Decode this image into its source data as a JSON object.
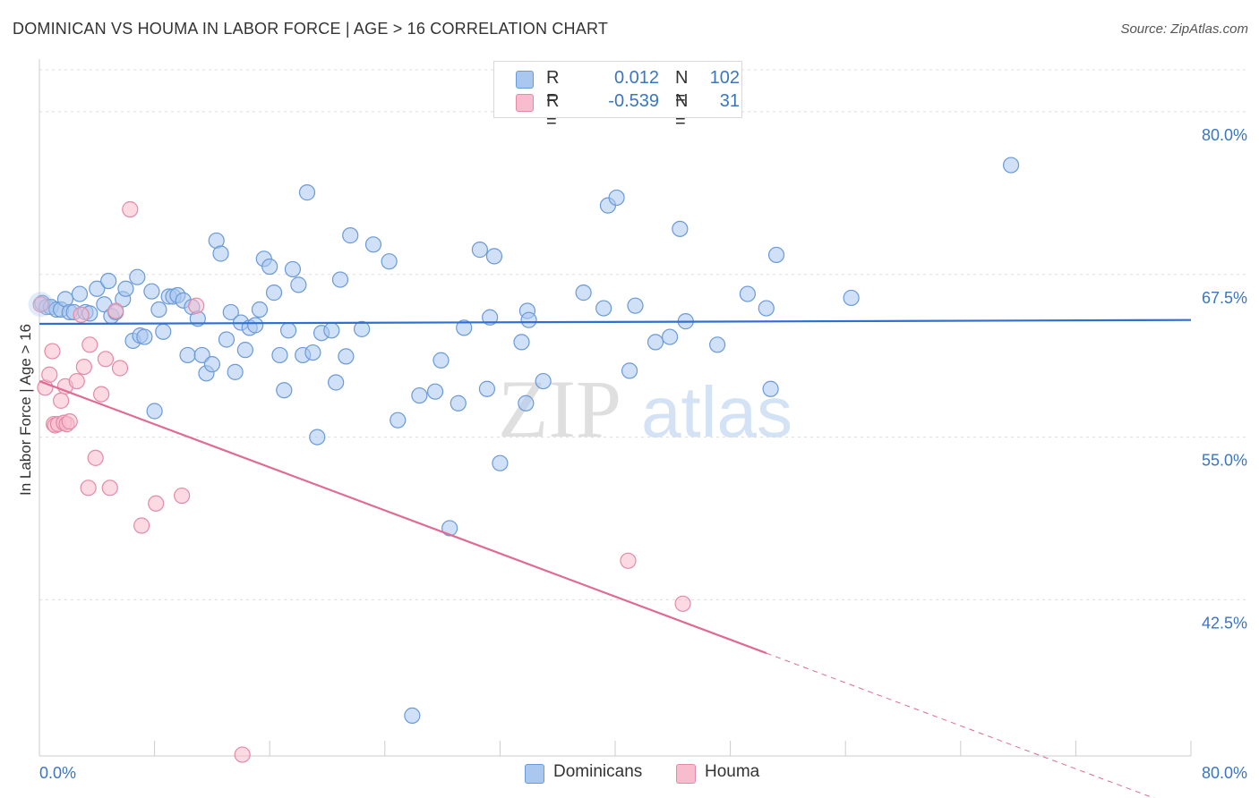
{
  "title": "DOMINICAN VS HOUMA IN LABOR FORCE | AGE > 16 CORRELATION CHART",
  "source": "Source: ZipAtlas.com",
  "watermark": {
    "zip": "ZIP",
    "atlas": "atlas"
  },
  "legend": {
    "rows": [
      {
        "r_label": "R =",
        "r_value": "0.012",
        "n_label": "N =",
        "n_value": "102",
        "color": "#a9c7ef",
        "border": "#6a9ad8"
      },
      {
        "r_label": "R =",
        "r_value": "-0.539",
        "n_label": "N =",
        "n_value": "31",
        "color": "#f7bccd",
        "border": "#e48aa6"
      }
    ]
  },
  "bottom_legend": [
    {
      "label": "Dominicans",
      "color": "#a9c7ef",
      "border": "#6a9ad8"
    },
    {
      "label": "Houma",
      "color": "#f7bccd",
      "border": "#e48aa6"
    }
  ],
  "chart_data": {
    "type": "scatter",
    "title": "DOMINICAN VS HOUMA IN LABOR FORCE | AGE > 16 CORRELATION CHART",
    "xlabel": "",
    "ylabel": "In Labor Force | Age > 16",
    "xlim": [
      0,
      80
    ],
    "ylim": [
      30.5,
      83.5
    ],
    "x_tick_labels": [
      "0.0%",
      "80.0%"
    ],
    "y_ticks": [
      42.5,
      55.0,
      67.5,
      80.0
    ],
    "y_tick_labels": [
      "42.5%",
      "55.0%",
      "67.5%",
      "80.0%"
    ],
    "grid": true,
    "series": [
      {
        "name": "Dominicans",
        "color": "#6a9ad8",
        "fill": "rgba(169,199,239,0.55)",
        "trend": {
          "x": [
            0,
            80
          ],
          "y": [
            63.7,
            64.0
          ],
          "color": "#2f6fd0"
        },
        "points": [
          [
            0.2,
            65.3
          ],
          [
            0.5,
            65.0
          ],
          [
            0.8,
            65.0
          ],
          [
            1.2,
            64.8
          ],
          [
            1.5,
            64.8
          ],
          [
            1.8,
            65.6
          ],
          [
            2.1,
            64.6
          ],
          [
            2.4,
            64.6
          ],
          [
            2.8,
            66.0
          ],
          [
            3.2,
            64.6
          ],
          [
            3.5,
            64.5
          ],
          [
            4.0,
            66.4
          ],
          [
            4.5,
            65.2
          ],
          [
            4.8,
            67.0
          ],
          [
            5.0,
            64.3
          ],
          [
            5.3,
            64.6
          ],
          [
            5.8,
            65.6
          ],
          [
            6.0,
            66.4
          ],
          [
            6.5,
            62.4
          ],
          [
            6.8,
            67.3
          ],
          [
            7.0,
            62.8
          ],
          [
            7.3,
            62.7
          ],
          [
            7.8,
            66.2
          ],
          [
            8.0,
            57.0
          ],
          [
            8.3,
            64.8
          ],
          [
            8.6,
            63.1
          ],
          [
            9.0,
            65.8
          ],
          [
            9.3,
            65.8
          ],
          [
            9.6,
            65.9
          ],
          [
            10.0,
            65.5
          ],
          [
            10.3,
            61.3
          ],
          [
            10.6,
            65.0
          ],
          [
            11.0,
            64.1
          ],
          [
            11.3,
            61.3
          ],
          [
            11.6,
            59.9
          ],
          [
            12.0,
            60.6
          ],
          [
            12.3,
            70.1
          ],
          [
            12.6,
            69.1
          ],
          [
            13.0,
            62.5
          ],
          [
            13.3,
            64.6
          ],
          [
            13.6,
            60.0
          ],
          [
            14.0,
            63.8
          ],
          [
            14.3,
            61.7
          ],
          [
            14.6,
            63.4
          ],
          [
            15.0,
            63.6
          ],
          [
            15.3,
            64.8
          ],
          [
            15.6,
            68.7
          ],
          [
            16.0,
            68.1
          ],
          [
            16.3,
            66.1
          ],
          [
            16.7,
            61.3
          ],
          [
            17.0,
            58.6
          ],
          [
            17.3,
            63.2
          ],
          [
            17.6,
            67.9
          ],
          [
            18.0,
            66.7
          ],
          [
            18.3,
            61.3
          ],
          [
            18.6,
            73.8
          ],
          [
            19.0,
            61.5
          ],
          [
            19.3,
            55.0
          ],
          [
            19.6,
            63.0
          ],
          [
            20.3,
            63.2
          ],
          [
            20.6,
            59.2
          ],
          [
            20.9,
            67.1
          ],
          [
            21.3,
            61.2
          ],
          [
            21.6,
            70.5
          ],
          [
            22.4,
            63.3
          ],
          [
            23.2,
            69.8
          ],
          [
            24.3,
            68.5
          ],
          [
            24.9,
            56.3
          ],
          [
            25.9,
            33.6
          ],
          [
            26.4,
            58.2
          ],
          [
            27.5,
            58.5
          ],
          [
            27.9,
            60.9
          ],
          [
            28.5,
            48.0
          ],
          [
            29.1,
            57.6
          ],
          [
            29.5,
            63.4
          ],
          [
            30.6,
            69.4
          ],
          [
            31.1,
            58.7
          ],
          [
            31.3,
            64.2
          ],
          [
            31.6,
            68.9
          ],
          [
            32.0,
            53.0
          ],
          [
            33.5,
            62.3
          ],
          [
            33.8,
            57.6
          ],
          [
            33.9,
            64.7
          ],
          [
            34.0,
            64.0
          ],
          [
            35.0,
            59.3
          ],
          [
            37.8,
            66.1
          ],
          [
            39.2,
            64.9
          ],
          [
            39.5,
            72.8
          ],
          [
            40.1,
            73.4
          ],
          [
            41.0,
            60.1
          ],
          [
            41.4,
            65.1
          ],
          [
            42.8,
            62.3
          ],
          [
            43.8,
            62.7
          ],
          [
            44.5,
            71.0
          ],
          [
            44.9,
            63.9
          ],
          [
            47.1,
            62.1
          ],
          [
            49.2,
            66.0
          ],
          [
            50.5,
            64.9
          ],
          [
            50.8,
            58.7
          ],
          [
            51.2,
            69.0
          ],
          [
            56.4,
            65.7
          ],
          [
            67.5,
            75.9
          ]
        ]
      },
      {
        "name": "Houma",
        "color": "#e48aa6",
        "fill": "rgba(247,188,205,0.55)",
        "trend": {
          "x": [
            0,
            50.5
          ],
          "y": [
            59.3,
            38.4
          ],
          "color": "#e06a93",
          "dashed_extension": {
            "x": [
              50.5,
              80
            ],
            "y": [
              38.4,
              26.2
            ]
          }
        },
        "points": [
          [
            0.1,
            65.2
          ],
          [
            0.4,
            58.8
          ],
          [
            0.7,
            59.8
          ],
          [
            0.9,
            61.6
          ],
          [
            1.0,
            56.0
          ],
          [
            1.1,
            55.9
          ],
          [
            1.3,
            56.0
          ],
          [
            1.5,
            57.8
          ],
          [
            1.7,
            56.1
          ],
          [
            1.8,
            58.9
          ],
          [
            1.9,
            56.0
          ],
          [
            2.1,
            56.2
          ],
          [
            2.6,
            59.3
          ],
          [
            2.9,
            64.4
          ],
          [
            3.1,
            60.4
          ],
          [
            3.4,
            51.1
          ],
          [
            3.5,
            62.1
          ],
          [
            3.9,
            53.4
          ],
          [
            4.3,
            58.3
          ],
          [
            4.6,
            61.0
          ],
          [
            4.9,
            51.1
          ],
          [
            5.3,
            64.7
          ],
          [
            5.6,
            60.3
          ],
          [
            6.3,
            72.5
          ],
          [
            7.1,
            48.2
          ],
          [
            8.1,
            49.9
          ],
          [
            9.9,
            50.5
          ],
          [
            10.9,
            65.1
          ],
          [
            14.1,
            30.6
          ],
          [
            40.9,
            45.5
          ],
          [
            44.7,
            42.2
          ]
        ]
      }
    ]
  }
}
